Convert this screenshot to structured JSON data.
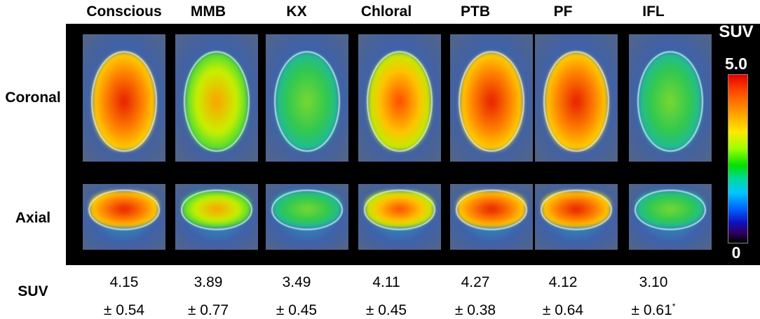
{
  "columns": [
    "Conscious",
    "MMB",
    "KX",
    "Chloral",
    "PTB",
    "PF",
    "IFL"
  ],
  "rows": [
    "Coronal",
    "Axial"
  ],
  "colorbar": {
    "title": "SUV",
    "max": "5.0",
    "min": "0"
  },
  "suv_label": "SUV",
  "suv_values": [
    {
      "mean": "4.15",
      "sd": "± 0.54",
      "mark": ""
    },
    {
      "mean": "3.89",
      "sd": "± 0.77",
      "mark": ""
    },
    {
      "mean": "3.49",
      "sd": "± 0.45",
      "mark": ""
    },
    {
      "mean": "4.11",
      "sd": "± 0.45",
      "mark": ""
    },
    {
      "mean": "4.27",
      "sd": "± 0.38",
      "mark": ""
    },
    {
      "mean": "4.12",
      "sd": "± 0.64",
      "mark": ""
    },
    {
      "mean": "3.10",
      "sd": "± 0.61",
      "mark": "*"
    }
  ],
  "scan_levels": [
    {
      "coronal": 0.92,
      "axial": 0.95
    },
    {
      "coronal": 0.62,
      "axial": 0.58
    },
    {
      "coronal": 0.42,
      "axial": 0.38
    },
    {
      "coronal": 0.8,
      "axial": 0.72
    },
    {
      "coronal": 0.9,
      "axial": 0.85
    },
    {
      "coronal": 0.87,
      "axial": 0.82
    },
    {
      "coronal": 0.4,
      "axial": 0.34
    }
  ]
}
